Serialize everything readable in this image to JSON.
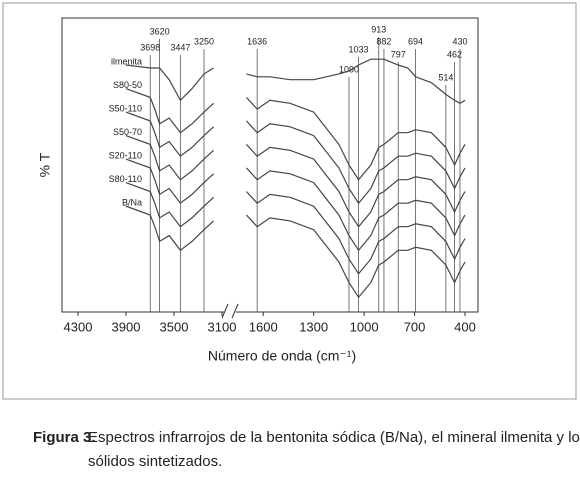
{
  "chart_data": {
    "type": "line",
    "y_label": "% T",
    "x_label": "Número de onda (cm⁻¹)",
    "x": [
      3900,
      3698,
      3660,
      3620,
      3540,
      3447,
      3350,
      3250,
      3170,
      1700,
      1636,
      1560,
      1440,
      1300,
      1150,
      1090,
      1033,
      960,
      913,
      882,
      797,
      740,
      694,
      600,
      514,
      462,
      430,
      400
    ],
    "xlim": [
      4300,
      400
    ],
    "xbreak": [
      3100,
      1750
    ],
    "xticks": [
      4300,
      3900,
      3500,
      3100,
      1600,
      1300,
      1000,
      700,
      400
    ],
    "ylim": [
      0,
      100
    ],
    "reference_lines": [
      3698,
      3620,
      3447,
      3250,
      1636,
      1090,
      1033,
      913,
      882,
      797,
      694,
      514,
      462,
      430
    ],
    "color": "#444444",
    "series": [
      {
        "name": "ilmenita",
        "values": [
          84,
          83,
          83,
          83,
          79,
          72,
          76,
          81,
          83,
          81,
          80,
          80,
          79,
          79,
          81,
          82,
          84,
          86,
          86,
          86,
          84,
          83,
          80,
          78,
          74,
          72,
          71,
          72
        ]
      },
      {
        "name": "S80-50",
        "values": [
          76,
          73,
          69,
          64,
          66,
          61,
          64,
          68,
          71,
          73,
          69,
          72,
          71,
          68,
          57,
          50,
          45,
          50,
          56,
          57,
          61,
          61,
          62,
          61,
          56,
          50,
          54,
          57
        ]
      },
      {
        "name": "S50-110",
        "values": [
          68,
          65,
          61,
          56,
          58,
          53,
          56,
          60,
          63,
          65,
          61,
          64,
          63,
          60,
          49,
          42,
          37,
          42,
          48,
          49,
          53,
          53,
          54,
          53,
          48,
          42,
          46,
          49
        ]
      },
      {
        "name": "S50-70",
        "values": [
          60,
          57,
          53,
          48,
          50,
          45,
          48,
          52,
          55,
          57,
          53,
          56,
          55,
          52,
          41,
          34,
          29,
          34,
          40,
          41,
          45,
          45,
          46,
          45,
          40,
          34,
          38,
          41
        ]
      },
      {
        "name": "S20-110",
        "values": [
          52,
          49,
          45,
          40,
          42,
          37,
          40,
          44,
          47,
          49,
          45,
          48,
          47,
          44,
          33,
          26,
          21,
          26,
          32,
          33,
          37,
          37,
          38,
          37,
          32,
          26,
          30,
          33
        ]
      },
      {
        "name": "S80-110",
        "values": [
          44,
          41,
          37,
          32,
          34,
          29,
          32,
          36,
          39,
          41,
          37,
          40,
          39,
          36,
          25,
          18,
          13,
          18,
          24,
          25,
          29,
          29,
          30,
          29,
          24,
          18,
          22,
          25
        ]
      },
      {
        "name": "B/Na",
        "values": [
          36,
          33,
          29,
          24,
          26,
          21,
          24,
          28,
          31,
          33,
          29,
          32,
          31,
          28,
          17,
          10,
          5,
          10,
          16,
          17,
          21,
          21,
          22,
          21,
          16,
          10,
          14,
          17
        ]
      }
    ]
  },
  "caption": {
    "label": "Figura 3.",
    "lines": [
      "Espectros infrarrojos de la bentonita sódica (B/Na), el mineral ilmenita y los",
      "sólidos sintetizados."
    ]
  }
}
